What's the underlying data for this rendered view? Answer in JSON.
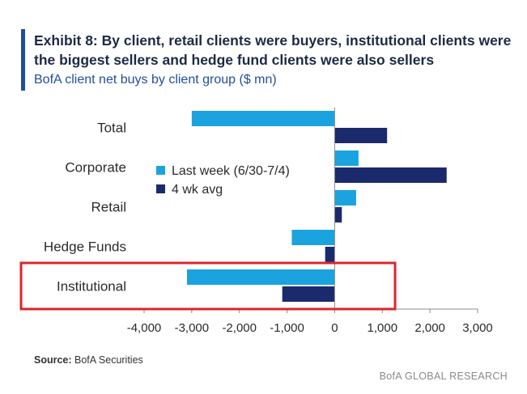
{
  "title": "Exhibit 8: By client, retail clients were buyers, institutional clients were the biggest sellers and hedge fund clients were also sellers",
  "subtitle": "BofA client net buys by client group ($ mn)",
  "source_label": "Source:",
  "source_text": " BofA Securities",
  "footer": "BofA GLOBAL RESEARCH",
  "colors": {
    "last_week": "#1aa3de",
    "four_wk_avg": "#1a2a6c",
    "highlight": "#d9262c",
    "title_bar": "#1f4e9c",
    "axis": "#8c8c8c"
  },
  "chart_data": {
    "type": "bar",
    "orientation": "horizontal",
    "categories": [
      "Total",
      "Corporate",
      "Retail",
      "Hedge Funds",
      "Institutional"
    ],
    "series": [
      {
        "name": "Last week (6/30-7/4)",
        "values": [
          -3000,
          500,
          450,
          -900,
          -3100
        ]
      },
      {
        "name": "4 wk avg",
        "values": [
          1100,
          2350,
          150,
          -200,
          -1100
        ]
      }
    ],
    "xlim": [
      -4000,
      3000
    ],
    "xticks": [
      -4000,
      -3000,
      -2000,
      -1000,
      0,
      1000,
      2000,
      3000
    ],
    "xtick_labels": [
      "-4,000",
      "-3,000",
      "-2,000",
      "-1,000",
      "0",
      "1,000",
      "2,000",
      "3,000"
    ],
    "legend_position": "center-left",
    "highlighted_category": "Institutional"
  }
}
